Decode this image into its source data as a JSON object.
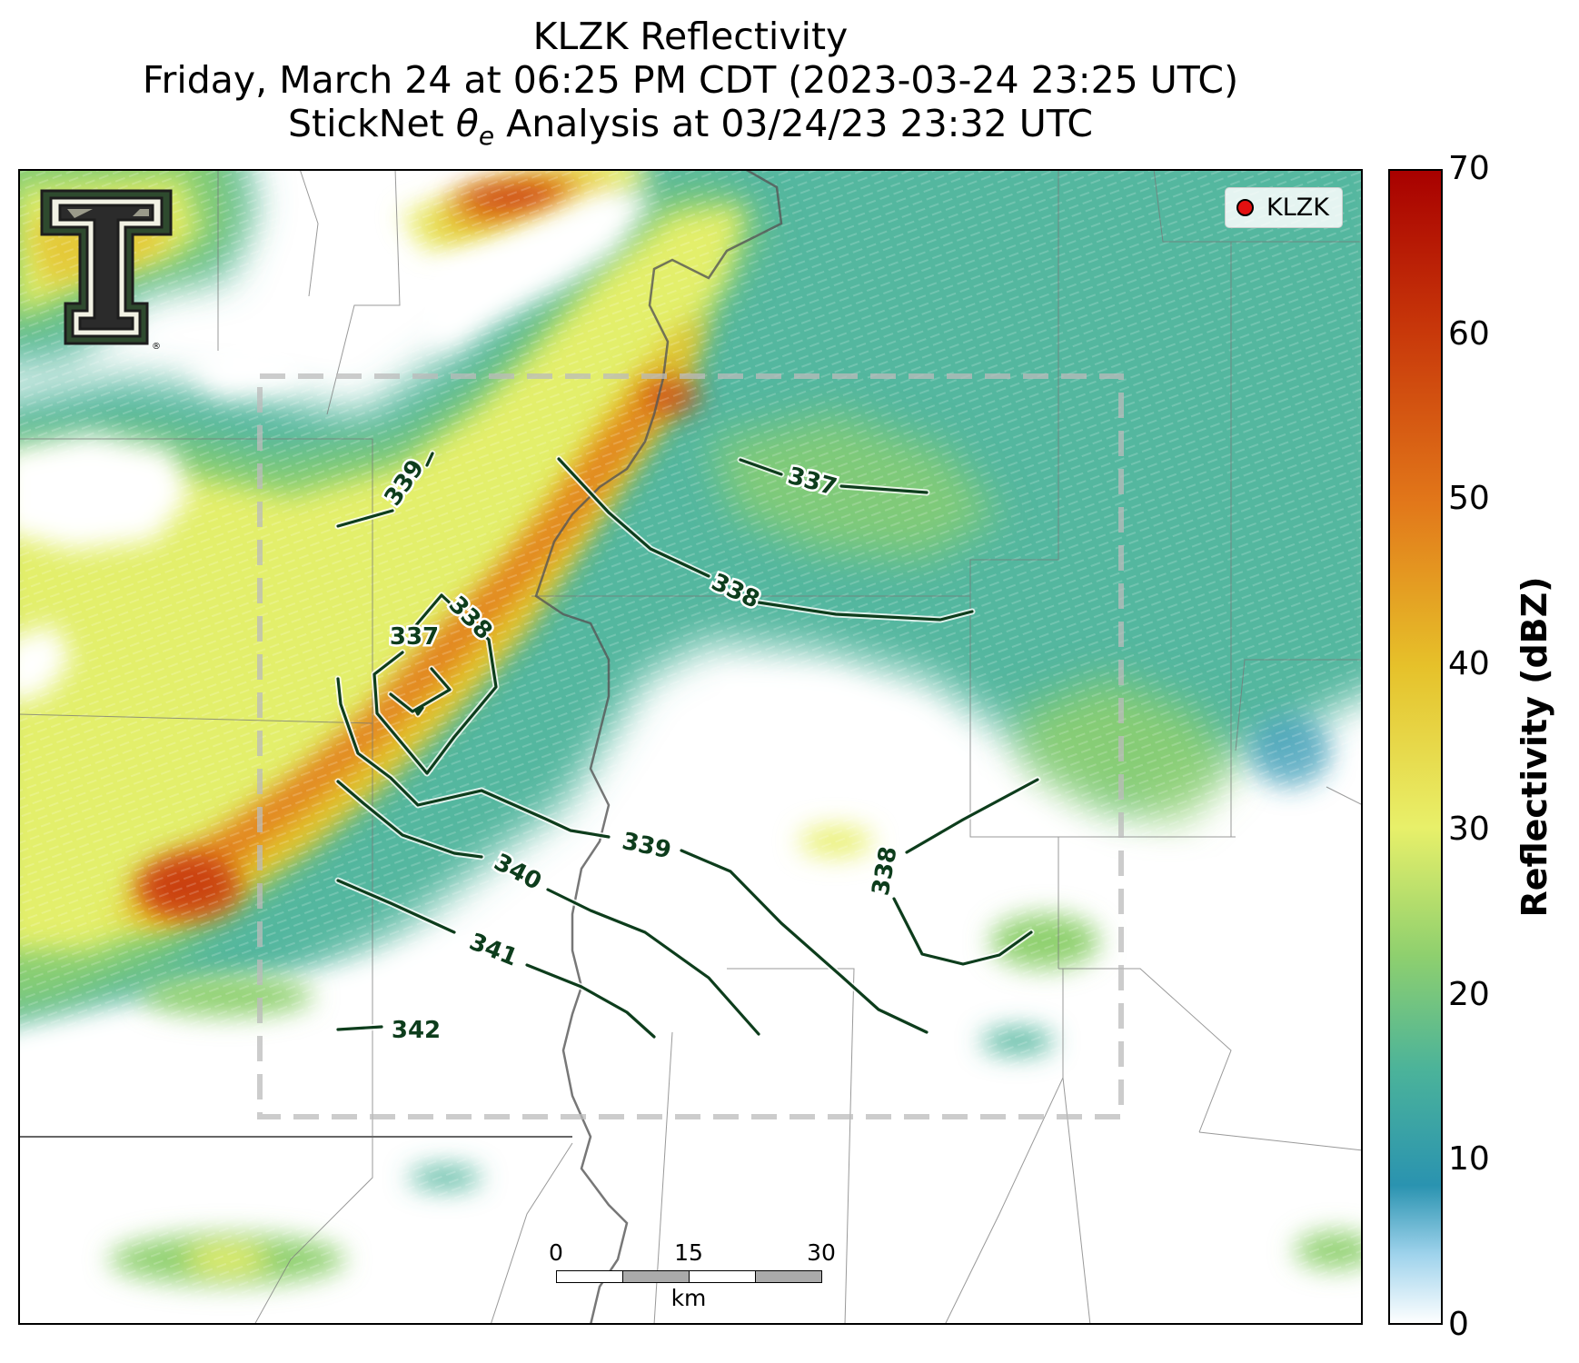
{
  "title": {
    "line1": "KLZK Reflectivity",
    "line2": "Friday, March 24 at 06:25 PM CDT (2023-03-24 23:25 UTC)",
    "line3_prefix": "StickNet ",
    "line3_symbol": "θ",
    "line3_sub": "e",
    "line3_suffix": " Analysis at 03/24/23 23:32 UTC"
  },
  "legend": {
    "label": "KLZK",
    "marker_color": "#e31010"
  },
  "logo": {
    "name": "texas-tech-double-t-logo",
    "registered_mark": "®"
  },
  "scale_bar": {
    "ticks": [
      "0",
      "15",
      "30"
    ],
    "unit": "km"
  },
  "colorbar": {
    "label": "Reflectivity (dBZ)",
    "min": 0,
    "max": 70,
    "ticks": [
      "0",
      "10",
      "20",
      "30",
      "40",
      "50",
      "60",
      "70"
    ],
    "colors": [
      "#ffffff",
      "#9fd3ec",
      "#2a93b0",
      "#4bb39a",
      "#8fd06e",
      "#e8f06a",
      "#e6c12a",
      "#e2781a",
      "#c8380a",
      "#a80000"
    ]
  },
  "contours": {
    "color": "#0d3d1c",
    "labels": [
      "337",
      "337",
      "338",
      "338",
      "338",
      "339",
      "339",
      "340",
      "341",
      "342"
    ]
  }
}
